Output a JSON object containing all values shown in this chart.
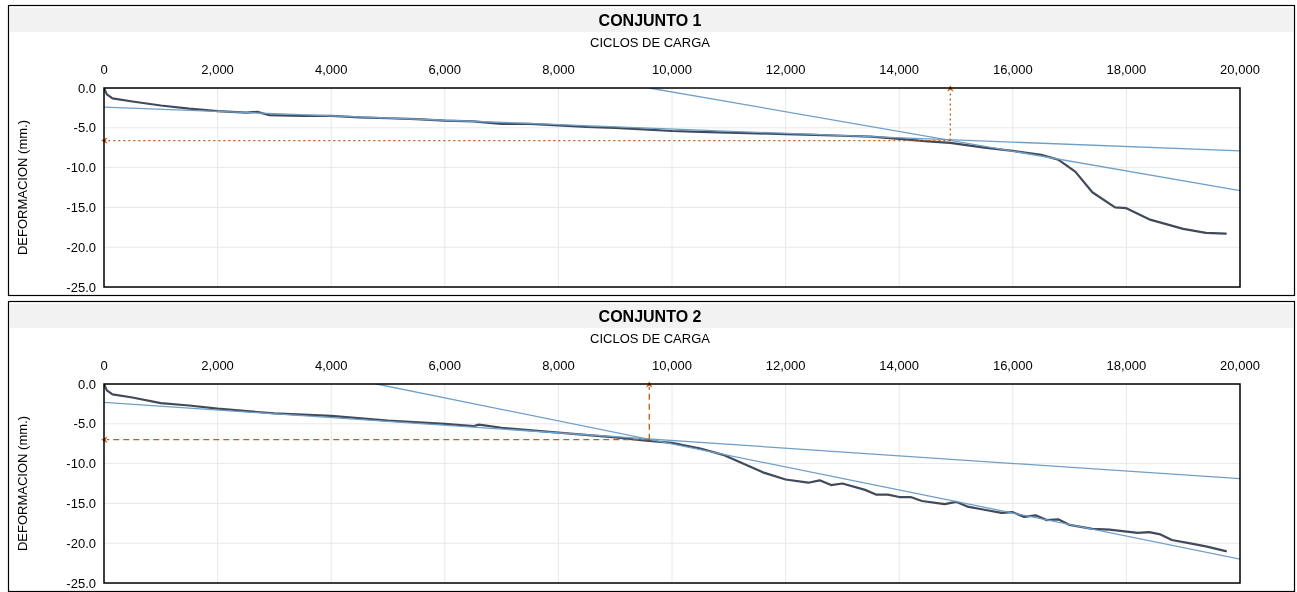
{
  "chart_data": [
    {
      "type": "line",
      "title": "CONJUNTO 1",
      "xlabel": "CICLOS DE CARGA",
      "ylabel": "DEFORMACION (mm.)",
      "xlim": [
        0,
        20000
      ],
      "ylim": [
        -25,
        0
      ],
      "xticks": [
        0,
        {
          "value": 2000,
          "label": "2,000"
        },
        {
          "value": 4000,
          "label": "4,000"
        },
        {
          "value": 6000,
          "label": "6,000"
        },
        {
          "value": 8000,
          "label": "8,000"
        },
        {
          "value": 10000,
          "label": "10,000"
        },
        {
          "value": 12000,
          "label": "12,000"
        },
        {
          "value": 14000,
          "label": "14,000"
        },
        {
          "value": 16000,
          "label": "16,000"
        },
        {
          "value": 18000,
          "label": "18,000"
        },
        {
          "value": 20000,
          "label": "20,000"
        }
      ],
      "yticks": [
        {
          "value": 0,
          "label": "0.0"
        },
        {
          "value": -5,
          "label": "-5.0"
        },
        {
          "value": -10,
          "label": "-10.0"
        },
        {
          "value": -15,
          "label": "-15.0"
        },
        {
          "value": -20,
          "label": "-20.0"
        },
        {
          "value": -25,
          "label": "-25.0"
        }
      ],
      "grid": true,
      "tick_labels": "xy",
      "series": [
        {
          "color": "#404a5a",
          "x": [
            0,
            50,
            150,
            500,
            1000,
            1500,
            2000,
            2500,
            2700,
            2900,
            3500,
            4000,
            4500,
            5000,
            5500,
            6000,
            6500,
            7000,
            7500,
            8000,
            8500,
            9000,
            9500,
            10000,
            10500,
            11000,
            11500,
            12000,
            12500,
            13000,
            13500,
            14000,
            14500,
            14900,
            15500,
            16000,
            16500,
            16800,
            17100,
            17400,
            17800,
            18000,
            18400,
            19000,
            19400,
            19750
          ],
          "values": [
            0,
            -0.8,
            -1.3,
            -1.7,
            -2.2,
            -2.6,
            -2.9,
            -3.1,
            -3.0,
            -3.4,
            -3.5,
            -3.5,
            -3.7,
            -3.8,
            -3.9,
            -4.1,
            -4.2,
            -4.5,
            -4.5,
            -4.7,
            -4.9,
            -5.0,
            -5.2,
            -5.4,
            -5.5,
            -5.6,
            -5.7,
            -5.8,
            -5.9,
            -6.0,
            -6.1,
            -6.4,
            -6.7,
            -6.9,
            -7.5,
            -7.9,
            -8.4,
            -9.0,
            -10.5,
            -13.1,
            -15.0,
            -15.1,
            -16.5,
            -17.7,
            -18.2,
            -18.3
          ]
        },
        {
          "color": "#6f9fc8",
          "x": [
            0,
            20000
          ],
          "values": [
            -2.4,
            -7.9
          ]
        },
        {
          "color": "#6f9fc8",
          "x": [
            9600,
            20000
          ],
          "values": [
            0,
            -12.9
          ]
        }
      ],
      "ref_lines": [
        {
          "axis": "y",
          "value": -6.6,
          "color": "#c55a11",
          "line_style": "dotted"
        },
        {
          "axis": "x",
          "value": 14900,
          "color": "#c55a11",
          "line_style": "dotted"
        }
      ]
    },
    {
      "type": "line",
      "title": "CONJUNTO 2",
      "xlabel": "CICLOS DE CARGA",
      "ylabel": "DEFORMACION (mm.)",
      "xlim": [
        0,
        20000
      ],
      "ylim": [
        -25,
        0
      ],
      "xticks": [
        0,
        {
          "value": 2000,
          "label": "2,000"
        },
        {
          "value": 4000,
          "label": "4,000"
        },
        {
          "value": 6000,
          "label": "6,000"
        },
        {
          "value": 8000,
          "label": "8,000"
        },
        {
          "value": 10000,
          "label": "10,000"
        },
        {
          "value": 12000,
          "label": "12,000"
        },
        {
          "value": 14000,
          "label": "14,000"
        },
        {
          "value": 16000,
          "label": "16,000"
        },
        {
          "value": 18000,
          "label": "18,000"
        },
        {
          "value": 20000,
          "label": "20,000"
        }
      ],
      "yticks": [
        {
          "value": 0,
          "label": "0.0"
        },
        {
          "value": -5,
          "label": "-5.0"
        },
        {
          "value": -10,
          "label": "-10.0"
        },
        {
          "value": -15,
          "label": "-15.0"
        },
        {
          "value": -20,
          "label": "-20.0"
        },
        {
          "value": -25,
          "label": "-25.0"
        }
      ],
      "grid": true,
      "tick_labels": "xy",
      "series": [
        {
          "color": "#404a5a",
          "x": [
            0,
            50,
            150,
            500,
            1000,
            1500,
            2000,
            3000,
            4000,
            5000,
            6000,
            6500,
            6600,
            7000,
            8000,
            9000,
            9500,
            10000,
            10500,
            10900,
            11600,
            12000,
            12400,
            12600,
            12800,
            13000,
            13400,
            13600,
            13800,
            14000,
            14200,
            14400,
            14800,
            15000,
            15200,
            15500,
            15800,
            16000,
            16200,
            16400,
            16600,
            16800,
            17000,
            17400,
            17700,
            18200,
            18400,
            18600,
            18800,
            19100,
            19400,
            19750
          ],
          "values": [
            0,
            -0.8,
            -1.3,
            -1.7,
            -2.4,
            -2.7,
            -3.1,
            -3.7,
            -4.0,
            -4.6,
            -5.0,
            -5.3,
            -5.1,
            -5.5,
            -6.1,
            -6.7,
            -7.1,
            -7.4,
            -8.1,
            -8.9,
            -11.1,
            -12.0,
            -12.4,
            -12.1,
            -12.7,
            -12.5,
            -13.3,
            -13.9,
            -13.9,
            -14.2,
            -14.2,
            -14.7,
            -15.1,
            -14.8,
            -15.4,
            -15.8,
            -16.2,
            -16.1,
            -16.7,
            -16.5,
            -17.1,
            -17.0,
            -17.7,
            -18.2,
            -18.3,
            -18.7,
            -18.6,
            -18.9,
            -19.6,
            -20.0,
            -20.4,
            -21.0
          ]
        },
        {
          "color": "#6f9fc8",
          "x": [
            0,
            20000
          ],
          "values": [
            -2.3,
            -11.9
          ]
        },
        {
          "color": "#6f9fc8",
          "x": [
            4800,
            20000
          ],
          "values": [
            0,
            -22.0
          ]
        }
      ],
      "ref_lines": [
        {
          "axis": "y",
          "value": -7.0,
          "color": "#c55a11",
          "line_style": "dashed"
        },
        {
          "axis": "x",
          "value": 9600,
          "color": "#c55a11",
          "line_style": "dashed"
        }
      ]
    }
  ]
}
